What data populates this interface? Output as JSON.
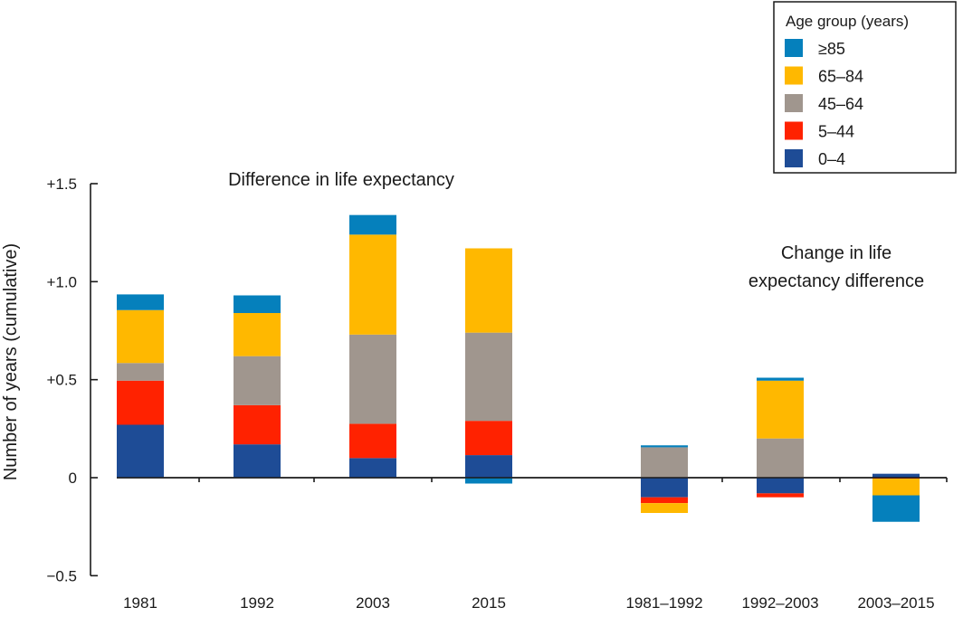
{
  "chart_data": {
    "type": "bar",
    "stacked": true,
    "ylabel": "Number of years (cumulative)",
    "xlabel": "",
    "ylim": [
      -0.5,
      1.5
    ],
    "yticks": [
      {
        "value": 1.5,
        "label": "+1.5"
      },
      {
        "value": 1.0,
        "label": "+1.0"
      },
      {
        "value": 0.5,
        "label": "+0.5"
      },
      {
        "value": 0,
        "label": "0"
      },
      {
        "value": -0.5,
        "label": "−0.5"
      }
    ],
    "grid": false,
    "legend": {
      "title": "Age group (years)",
      "placement": "top-right",
      "entries": [
        {
          "name": "≥85",
          "color": "#0580BC"
        },
        {
          "name": "65–84",
          "color": "#FFB800"
        },
        {
          "name": "45–64",
          "color": "#A0968E"
        },
        {
          "name": "5–44",
          "color": "#FF2200"
        },
        {
          "name": "0–4",
          "color": "#1E4C96"
        }
      ]
    },
    "annotations": [
      {
        "text": "Difference in life expectancy",
        "group": "left"
      },
      {
        "text_lines": [
          "Change in life",
          "expectancy difference"
        ],
        "group": "right"
      }
    ],
    "categories": [
      "1981",
      "1992",
      "2003",
      "2015",
      "1981–1992",
      "1992–2003",
      "2003–2015"
    ],
    "series": [
      {
        "name": "0–4",
        "color": "#1E4C96",
        "values": [
          0.27,
          0.17,
          0.1,
          0.115,
          -0.1,
          -0.08,
          0.02
        ]
      },
      {
        "name": "5–44",
        "color": "#FF2200",
        "values": [
          0.225,
          0.2,
          0.175,
          0.175,
          -0.03,
          -0.02,
          -0.005
        ]
      },
      {
        "name": "45–64",
        "color": "#A0968E",
        "values": [
          0.09,
          0.25,
          0.455,
          0.45,
          0.155,
          0.2,
          0.0
        ]
      },
      {
        "name": "65–84",
        "color": "#FFB800",
        "values": [
          0.27,
          0.22,
          0.51,
          0.43,
          -0.05,
          0.295,
          -0.085
        ]
      },
      {
        "name": "≥85",
        "color": "#0580BC",
        "values": [
          0.08,
          0.09,
          0.1,
          -0.03,
          0.01,
          0.015,
          -0.135
        ]
      }
    ]
  }
}
